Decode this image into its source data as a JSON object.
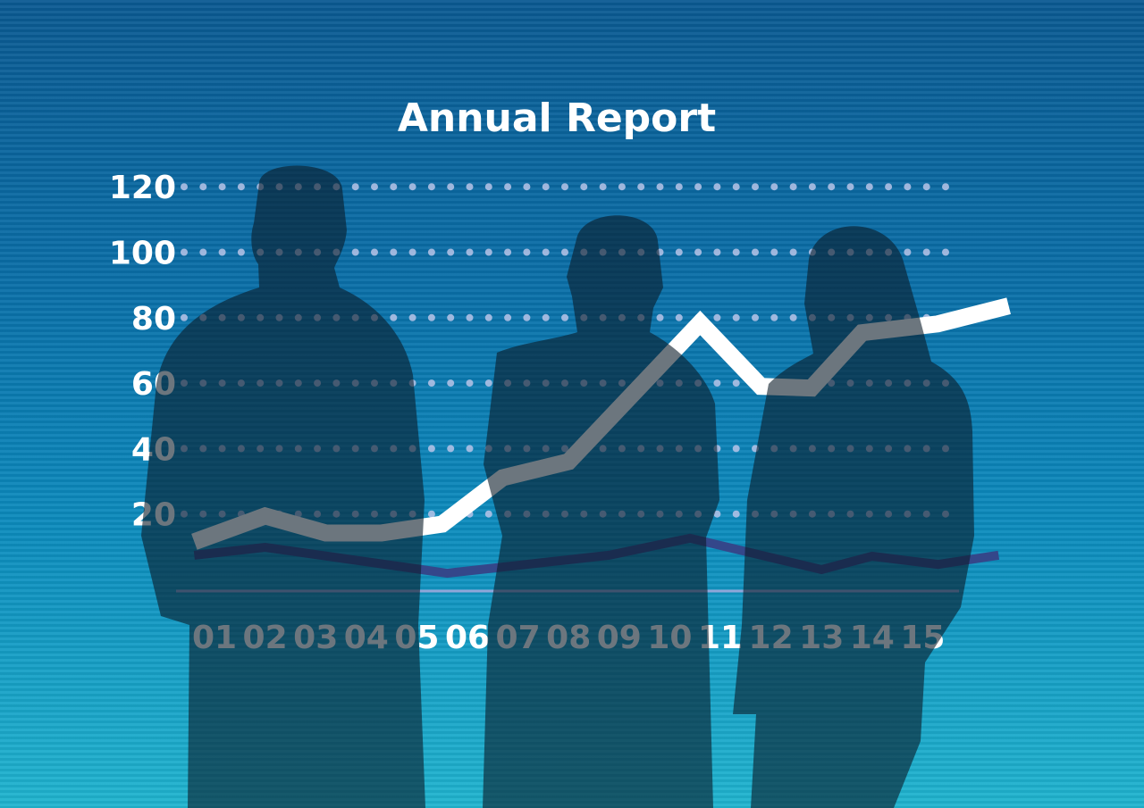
{
  "chart_data": {
    "type": "line",
    "title": "Annual Report",
    "xlabel": "",
    "ylabel": "",
    "x_tick_labels": [
      "01",
      "02",
      "03",
      "04",
      "05",
      "06",
      "07",
      "08",
      "09",
      "10",
      "11",
      "12",
      "13",
      "14",
      "15"
    ],
    "y_ticks": [
      20,
      40,
      60,
      80,
      100,
      120
    ],
    "ylim": [
      0,
      120
    ],
    "grid": "dotted horizontal",
    "series": [
      {
        "color": "#ffffff",
        "points": [
          [
            0.6,
            11.5
          ],
          [
            2.0,
            19.4
          ],
          [
            3.2,
            14.2
          ],
          [
            4.3,
            14.2
          ],
          [
            5.5,
            16.9
          ],
          [
            6.7,
            31.1
          ],
          [
            8.0,
            36.0
          ],
          [
            10.6,
            78.4
          ],
          [
            11.8,
            59.0
          ],
          [
            12.8,
            58.5
          ],
          [
            13.8,
            75.4
          ],
          [
            15.3,
            78.1
          ],
          [
            16.7,
            83.6
          ]
        ]
      },
      {
        "color": "#34478a",
        "points": [
          [
            0.6,
            7.4
          ],
          [
            2.0,
            9.8
          ],
          [
            5.1,
            3.0
          ],
          [
            5.6,
            1.9
          ],
          [
            8.8,
            7.4
          ],
          [
            10.4,
            12.6
          ],
          [
            13.0,
            3.0
          ],
          [
            14.0,
            7.1
          ],
          [
            15.3,
            4.6
          ],
          [
            16.5,
            7.4
          ]
        ]
      }
    ],
    "colors": {
      "background_top": "#0b5a92",
      "background_bottom": "#20b4cf",
      "silhouette": "#0a1a28"
    }
  }
}
